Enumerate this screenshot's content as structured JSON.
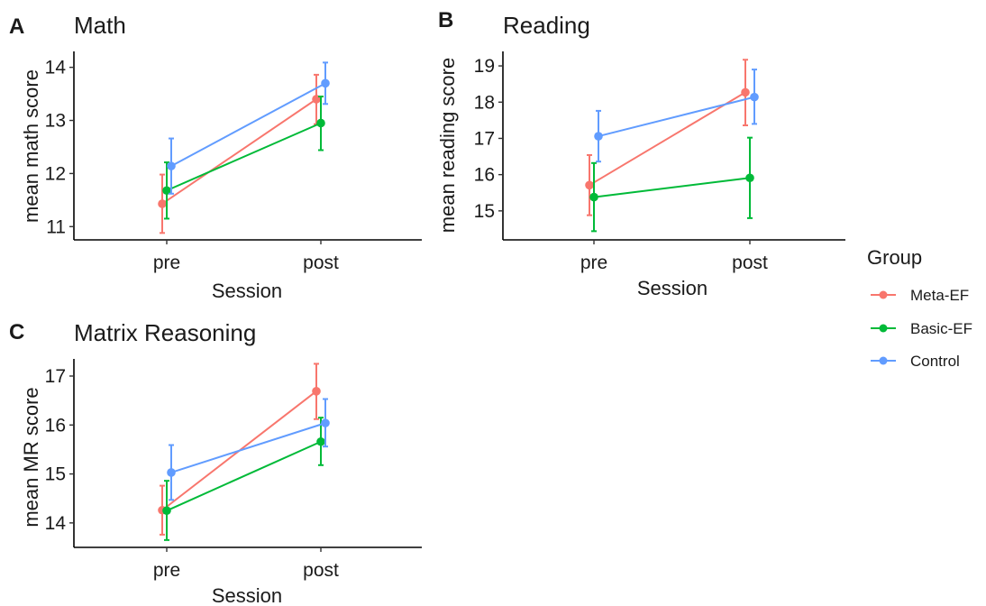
{
  "legend": {
    "title": "Group",
    "items": [
      {
        "label": "Meta-EF",
        "color": "#F8766D"
      },
      {
        "label": "Basic-EF",
        "color": "#00BA38"
      },
      {
        "label": "Control",
        "color": "#619CFF"
      }
    ]
  },
  "chart_data": [
    {
      "type": "line",
      "panel": "A",
      "title": "Math",
      "xlabel": "Session",
      "ylabel": "mean math score",
      "categories": [
        "pre",
        "post"
      ],
      "ylim": [
        10.75,
        14.3
      ],
      "yticks": [
        11,
        12,
        13,
        14
      ],
      "error_bars": true,
      "grid": false,
      "series": [
        {
          "name": "Meta-EF",
          "color": "#F8766D",
          "values": [
            11.43,
            13.4
          ],
          "lower": [
            10.88,
            12.93
          ],
          "upper": [
            11.98,
            13.86
          ]
        },
        {
          "name": "Basic-EF",
          "color": "#00BA38",
          "values": [
            11.68,
            12.95
          ],
          "lower": [
            11.15,
            12.44
          ],
          "upper": [
            12.21,
            13.45
          ]
        },
        {
          "name": "Control",
          "color": "#619CFF",
          "values": [
            12.14,
            13.7
          ],
          "lower": [
            11.62,
            13.31
          ],
          "upper": [
            12.66,
            14.09
          ]
        }
      ]
    },
    {
      "type": "line",
      "panel": "B",
      "title": "Reading",
      "xlabel": "Session",
      "ylabel": "mean reading score",
      "categories": [
        "pre",
        "post"
      ],
      "ylim": [
        14.2,
        19.4
      ],
      "yticks": [
        15,
        16,
        17,
        18,
        19
      ],
      "error_bars": true,
      "grid": false,
      "series": [
        {
          "name": "Meta-EF",
          "color": "#F8766D",
          "values": [
            15.71,
            18.27
          ],
          "lower": [
            14.88,
            17.36
          ],
          "upper": [
            16.54,
            19.17
          ]
        },
        {
          "name": "Basic-EF",
          "color": "#00BA38",
          "values": [
            15.38,
            15.91
          ],
          "lower": [
            14.44,
            14.8
          ],
          "upper": [
            16.32,
            17.02
          ]
        },
        {
          "name": "Control",
          "color": "#619CFF",
          "values": [
            17.06,
            18.14
          ],
          "lower": [
            16.36,
            17.4
          ],
          "upper": [
            17.76,
            18.9
          ]
        }
      ]
    },
    {
      "type": "line",
      "panel": "C",
      "title": "Matrix Reasoning",
      "xlabel": "Session",
      "ylabel": "mean MR score",
      "categories": [
        "pre",
        "post"
      ],
      "ylim": [
        13.5,
        17.35
      ],
      "yticks": [
        14,
        15,
        16,
        17
      ],
      "error_bars": true,
      "grid": false,
      "series": [
        {
          "name": "Meta-EF",
          "color": "#F8766D",
          "values": [
            14.26,
            16.69
          ],
          "lower": [
            13.76,
            16.12
          ],
          "upper": [
            14.76,
            17.25
          ]
        },
        {
          "name": "Basic-EF",
          "color": "#00BA38",
          "values": [
            14.25,
            15.66
          ],
          "lower": [
            13.65,
            15.18
          ],
          "upper": [
            14.86,
            16.15
          ]
        },
        {
          "name": "Control",
          "color": "#619CFF",
          "values": [
            15.03,
            16.04
          ],
          "lower": [
            14.47,
            15.56
          ],
          "upper": [
            15.59,
            16.53
          ]
        }
      ]
    }
  ]
}
